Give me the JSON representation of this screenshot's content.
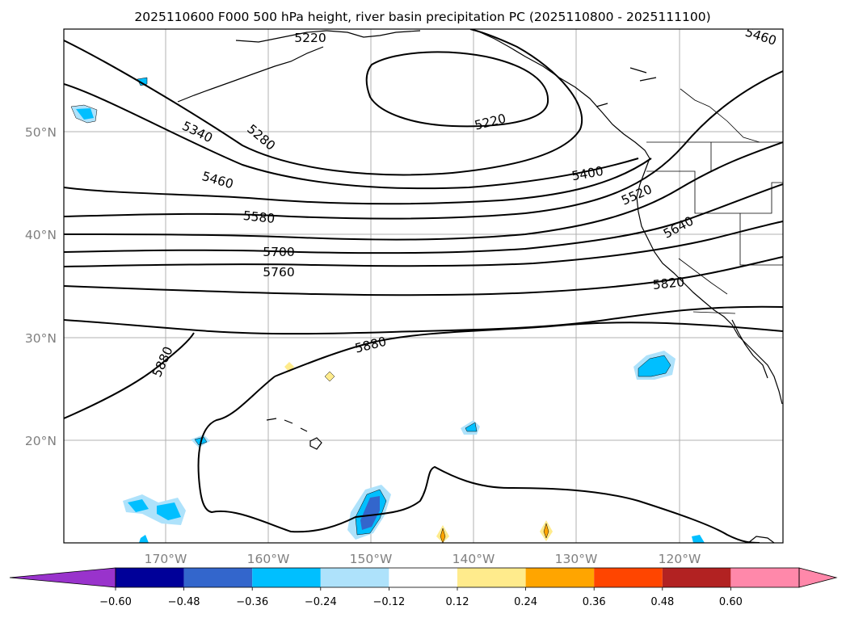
{
  "title": "2025110600 F000 500 hPa height, river basin precipitation PC (2025110800 - 2025111100)",
  "map": {
    "lon_labels": [
      "170°W",
      "160°W",
      "150°W",
      "140°W",
      "130°W",
      "120°W"
    ],
    "lat_labels": [
      "50°N",
      "40°N",
      "30°N",
      "20°N"
    ],
    "gridlines": true
  },
  "height_contour_labels": [
    {
      "text": "5220"
    },
    {
      "text": "5220"
    },
    {
      "text": "5460"
    },
    {
      "text": "5340"
    },
    {
      "text": "5280"
    },
    {
      "text": "5400"
    },
    {
      "text": "5460"
    },
    {
      "text": "5520"
    },
    {
      "text": "5580"
    },
    {
      "text": "5640"
    },
    {
      "text": "5700"
    },
    {
      "text": "5760"
    },
    {
      "text": "5820"
    },
    {
      "text": "5880"
    },
    {
      "text": "5880"
    }
  ],
  "colorbar": {
    "ticks": [
      "−0.60",
      "−0.48",
      "−0.36",
      "−0.24",
      "−0.12",
      "0.12",
      "0.24",
      "0.36",
      "0.48",
      "0.60"
    ],
    "colors": {
      "under": "#9933cc",
      "bins": [
        "#000099",
        "#3366cc",
        "#00bfff",
        "#aee2fb",
        "#ffffff",
        "#ffeb8c",
        "#ffa500",
        "#ff4500",
        "#b22222",
        "#ff88aa"
      ],
      "first_bin": "#9933cc",
      "over": "#ff88aa"
    }
  }
}
